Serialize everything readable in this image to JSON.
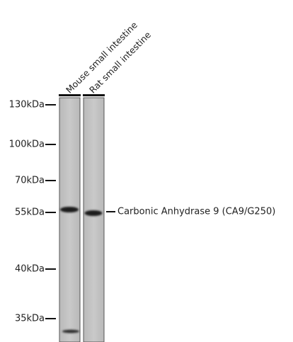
{
  "lanes": [
    {
      "label": "Mouse small intestine"
    },
    {
      "label": "Rat small intestine"
    }
  ],
  "markers": [
    "130kDa",
    "100kDa",
    "70kDa",
    "55kDa",
    "40kDa",
    "35kDa"
  ],
  "band_label": "Carbonic Anhydrase 9 (CA9/G250)"
}
